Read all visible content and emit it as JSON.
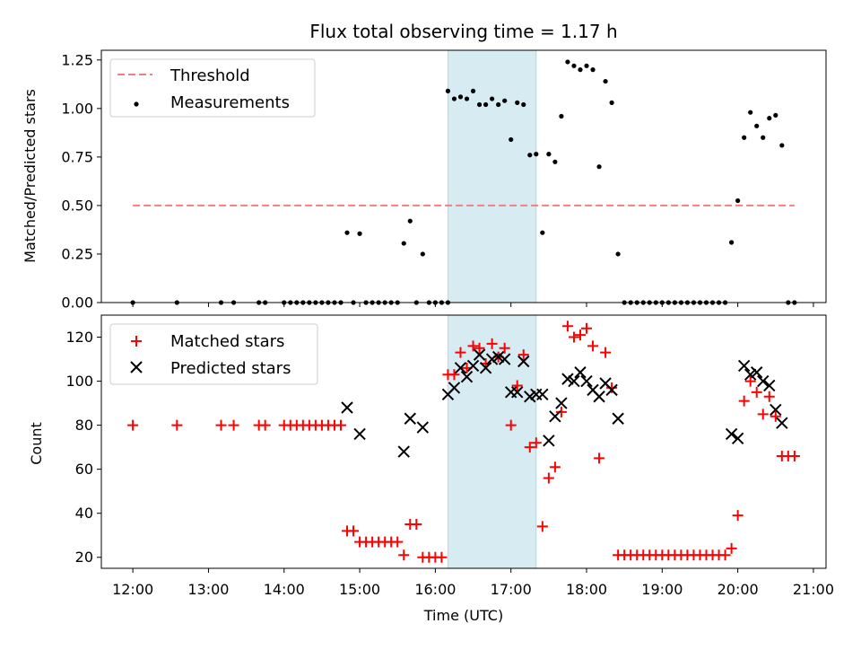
{
  "title": "Flux total observing time = 1.17 h",
  "colors": {
    "threshold": "#f08080",
    "measurement": "#000000",
    "matched": "#ff0000",
    "predicted": "#000000",
    "observing_band": "#add8e6"
  },
  "chart_data": [
    {
      "type": "scatter",
      "ylabel": "Matched/Predicted stars",
      "xlim": [
        "11:35",
        "21:10"
      ],
      "ylim": [
        0,
        1.3
      ],
      "y_ticks": [
        "0.00",
        "0.25",
        "0.50",
        "0.75",
        "1.00",
        "1.25"
      ],
      "grid": false,
      "legend_position": "upper-left",
      "highlight_band": {
        "start": "16:10",
        "end": "17:20"
      },
      "series": [
        {
          "name": "Threshold",
          "kind": "dashed-line",
          "points": [
            [
              "12:00",
              0.5
            ],
            [
              "20:45",
              0.5
            ]
          ]
        },
        {
          "name": "Measurements",
          "kind": "dot",
          "points": [
            [
              "12:00",
              0
            ],
            [
              "12:35",
              0
            ],
            [
              "13:10",
              0
            ],
            [
              "13:20",
              0
            ],
            [
              "13:40",
              0
            ],
            [
              "13:45",
              0
            ],
            [
              "14:00",
              0
            ],
            [
              "14:05",
              0
            ],
            [
              "14:10",
              0
            ],
            [
              "14:15",
              0
            ],
            [
              "14:20",
              0
            ],
            [
              "14:25",
              0
            ],
            [
              "14:30",
              0
            ],
            [
              "14:35",
              0
            ],
            [
              "14:40",
              0
            ],
            [
              "14:45",
              0
            ],
            [
              "14:50",
              0.36
            ],
            [
              "14:55",
              0
            ],
            [
              "15:00",
              0.355
            ],
            [
              "15:05",
              0
            ],
            [
              "15:10",
              0
            ],
            [
              "15:15",
              0
            ],
            [
              "15:20",
              0
            ],
            [
              "15:25",
              0
            ],
            [
              "15:30",
              0
            ],
            [
              "15:35",
              0.305
            ],
            [
              "15:40",
              0.42
            ],
            [
              "15:45",
              0
            ],
            [
              "15:50",
              0.25
            ],
            [
              "15:55",
              0
            ],
            [
              "16:00",
              0
            ],
            [
              "16:05",
              0
            ],
            [
              "16:10",
              0
            ],
            [
              "16:10",
              1.09
            ],
            [
              "16:15",
              1.05
            ],
            [
              "16:20",
              1.06
            ],
            [
              "16:25",
              1.05
            ],
            [
              "16:30",
              1.09
            ],
            [
              "16:35",
              1.02
            ],
            [
              "16:40",
              1.02
            ],
            [
              "16:45",
              1.05
            ],
            [
              "16:50",
              1.02
            ],
            [
              "16:55",
              1.04
            ],
            [
              "17:00",
              0.84
            ],
            [
              "17:05",
              1.03
            ],
            [
              "17:10",
              1.02
            ],
            [
              "17:15",
              0.76
            ],
            [
              "17:20",
              0.765
            ],
            [
              "17:25",
              0.36
            ],
            [
              "17:30",
              0.765
            ],
            [
              "17:35",
              0.725
            ],
            [
              "17:40",
              0.96
            ],
            [
              "17:45",
              1.24
            ],
            [
              "17:50",
              1.22
            ],
            [
              "17:55",
              1.2
            ],
            [
              "18:00",
              1.22
            ],
            [
              "18:05",
              1.2
            ],
            [
              "18:10",
              0.7
            ],
            [
              "18:15",
              1.14
            ],
            [
              "18:20",
              1.03
            ],
            [
              "18:25",
              0.25
            ],
            [
              "18:30",
              0
            ],
            [
              "18:35",
              0
            ],
            [
              "18:40",
              0
            ],
            [
              "18:45",
              0
            ],
            [
              "18:50",
              0
            ],
            [
              "18:55",
              0
            ],
            [
              "19:00",
              0
            ],
            [
              "19:05",
              0
            ],
            [
              "19:10",
              0
            ],
            [
              "19:15",
              0
            ],
            [
              "19:20",
              0
            ],
            [
              "19:25",
              0
            ],
            [
              "19:30",
              0
            ],
            [
              "19:35",
              0
            ],
            [
              "19:40",
              0
            ],
            [
              "19:45",
              0
            ],
            [
              "19:50",
              0
            ],
            [
              "19:55",
              0.31
            ],
            [
              "20:00",
              0.525
            ],
            [
              "20:05",
              0.85
            ],
            [
              "20:10",
              0.98
            ],
            [
              "20:15",
              0.91
            ],
            [
              "20:20",
              0.85
            ],
            [
              "20:25",
              0.95
            ],
            [
              "20:30",
              0.965
            ],
            [
              "20:35",
              0.81
            ],
            [
              "20:40",
              0
            ],
            [
              "20:45",
              0
            ]
          ]
        }
      ]
    },
    {
      "type": "scatter",
      "ylabel": "Count",
      "xlabel": "Time (UTC)",
      "xlim": [
        "11:35",
        "21:10"
      ],
      "ylim": [
        15,
        130
      ],
      "y_ticks": [
        "20",
        "40",
        "60",
        "80",
        "100",
        "120"
      ],
      "x_ticks": [
        "12:00",
        "13:00",
        "14:00",
        "15:00",
        "16:00",
        "17:00",
        "18:00",
        "19:00",
        "20:00",
        "21:00"
      ],
      "grid": false,
      "legend_position": "upper-left",
      "highlight_band": {
        "start": "16:10",
        "end": "17:20"
      },
      "series": [
        {
          "name": "Matched stars",
          "kind": "plus",
          "points": [
            [
              "12:00",
              80
            ],
            [
              "12:35",
              80
            ],
            [
              "13:10",
              80
            ],
            [
              "13:20",
              80
            ],
            [
              "13:40",
              80
            ],
            [
              "13:45",
              80
            ],
            [
              "14:00",
              80
            ],
            [
              "14:05",
              80
            ],
            [
              "14:10",
              80
            ],
            [
              "14:15",
              80
            ],
            [
              "14:20",
              80
            ],
            [
              "14:25",
              80
            ],
            [
              "14:30",
              80
            ],
            [
              "14:35",
              80
            ],
            [
              "14:40",
              80
            ],
            [
              "14:45",
              80
            ],
            [
              "14:50",
              32
            ],
            [
              "14:55",
              32
            ],
            [
              "15:00",
              27
            ],
            [
              "15:05",
              27
            ],
            [
              "15:10",
              27
            ],
            [
              "15:15",
              27
            ],
            [
              "15:20",
              27
            ],
            [
              "15:25",
              27
            ],
            [
              "15:30",
              27
            ],
            [
              "15:35",
              21
            ],
            [
              "15:40",
              35
            ],
            [
              "15:45",
              35
            ],
            [
              "15:50",
              20
            ],
            [
              "15:55",
              20
            ],
            [
              "16:00",
              20
            ],
            [
              "16:05",
              20
            ],
            [
              "16:10",
              103
            ],
            [
              "16:15",
              103
            ],
            [
              "16:20",
              113
            ],
            [
              "16:25",
              106
            ],
            [
              "16:30",
              116
            ],
            [
              "16:35",
              115
            ],
            [
              "16:40",
              108
            ],
            [
              "16:45",
              117
            ],
            [
              "16:50",
              111
            ],
            [
              "16:55",
              115
            ],
            [
              "17:00",
              80
            ],
            [
              "17:05",
              98
            ],
            [
              "17:10",
              112
            ],
            [
              "17:15",
              70
            ],
            [
              "17:20",
              72
            ],
            [
              "17:25",
              34
            ],
            [
              "17:30",
              56
            ],
            [
              "17:35",
              61
            ],
            [
              "17:40",
              86
            ],
            [
              "17:45",
              125
            ],
            [
              "17:50",
              120
            ],
            [
              "17:55",
              121
            ],
            [
              "18:00",
              124
            ],
            [
              "18:05",
              116
            ],
            [
              "18:10",
              65
            ],
            [
              "18:15",
              113
            ],
            [
              "18:20",
              97
            ],
            [
              "18:25",
              21
            ],
            [
              "18:30",
              21
            ],
            [
              "18:35",
              21
            ],
            [
              "18:40",
              21
            ],
            [
              "18:45",
              21
            ],
            [
              "18:50",
              21
            ],
            [
              "18:55",
              21
            ],
            [
              "19:00",
              21
            ],
            [
              "19:05",
              21
            ],
            [
              "19:10",
              21
            ],
            [
              "19:15",
              21
            ],
            [
              "19:20",
              21
            ],
            [
              "19:25",
              21
            ],
            [
              "19:30",
              21
            ],
            [
              "19:35",
              21
            ],
            [
              "19:40",
              21
            ],
            [
              "19:45",
              21
            ],
            [
              "19:50",
              21
            ],
            [
              "19:55",
              24
            ],
            [
              "20:00",
              39
            ],
            [
              "20:05",
              91
            ],
            [
              "20:10",
              100
            ],
            [
              "20:15",
              95
            ],
            [
              "20:20",
              85
            ],
            [
              "20:25",
              93
            ],
            [
              "20:30",
              84
            ],
            [
              "20:35",
              66
            ],
            [
              "20:40",
              66
            ],
            [
              "20:45",
              66
            ]
          ]
        },
        {
          "name": "Predicted stars",
          "kind": "x",
          "points": [
            [
              "14:50",
              88
            ],
            [
              "15:00",
              76
            ],
            [
              "15:35",
              68
            ],
            [
              "15:40",
              83
            ],
            [
              "15:50",
              79
            ],
            [
              "16:10",
              94
            ],
            [
              "16:15",
              97
            ],
            [
              "16:20",
              106
            ],
            [
              "16:25",
              102
            ],
            [
              "16:30",
              107
            ],
            [
              "16:35",
              112
            ],
            [
              "16:40",
              106
            ],
            [
              "16:45",
              110
            ],
            [
              "16:50",
              111
            ],
            [
              "16:55",
              110
            ],
            [
              "17:00",
              95
            ],
            [
              "17:05",
              95
            ],
            [
              "17:10",
              109
            ],
            [
              "17:15",
              93
            ],
            [
              "17:20",
              94
            ],
            [
              "17:25",
              94
            ],
            [
              "17:30",
              73
            ],
            [
              "17:35",
              84
            ],
            [
              "17:40",
              90
            ],
            [
              "17:45",
              101
            ],
            [
              "17:50",
              100
            ],
            [
              "17:55",
              104
            ],
            [
              "18:00",
              100
            ],
            [
              "18:05",
              96
            ],
            [
              "18:10",
              93
            ],
            [
              "18:15",
              99
            ],
            [
              "18:20",
              96
            ],
            [
              "18:25",
              83
            ],
            [
              "19:55",
              76
            ],
            [
              "20:00",
              74
            ],
            [
              "20:05",
              107
            ],
            [
              "20:10",
              103
            ],
            [
              "20:15",
              104
            ],
            [
              "20:20",
              100
            ],
            [
              "20:25",
              98
            ],
            [
              "20:30",
              87
            ],
            [
              "20:35",
              81
            ]
          ]
        }
      ]
    }
  ]
}
